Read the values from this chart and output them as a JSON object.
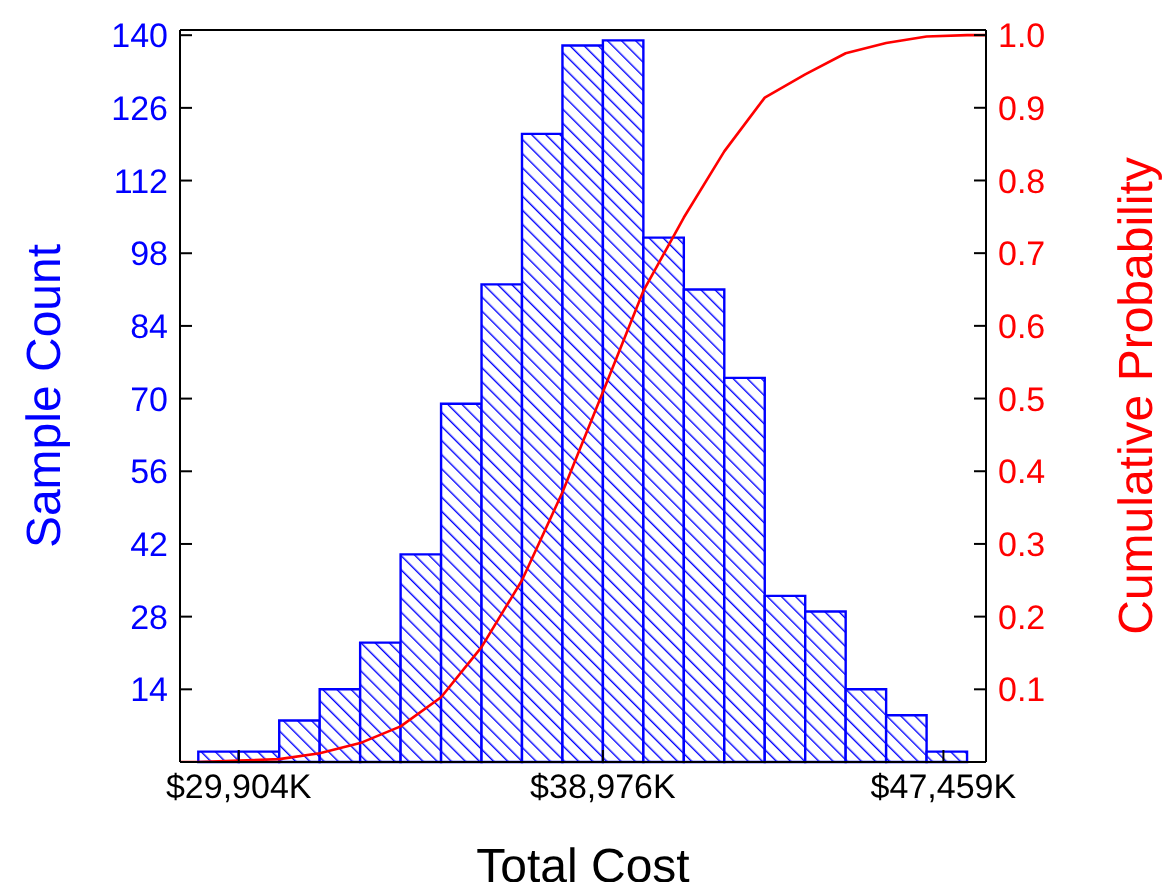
{
  "chart_data": {
    "type": "histogram",
    "xlabel": "Total Cost",
    "ylabel": "Sample Count",
    "y2label": "Cumulative Probability",
    "bins": [
      28896,
      29904,
      30912,
      31920,
      32928,
      33936,
      34944,
      35952,
      36960,
      37968,
      38976,
      39984,
      40992,
      42000,
      43008,
      44016,
      45024,
      46032,
      47040,
      48048
    ],
    "values": [
      2,
      2,
      8,
      14,
      23,
      40,
      69,
      92,
      121,
      138,
      139,
      101,
      91,
      74,
      32,
      29,
      14,
      9,
      2
    ],
    "color": "#0000ff",
    "series": [
      {
        "type": "line",
        "axis": "y2",
        "color": "#ff0000",
        "x": [
          28440,
          28896,
          29904,
          30912,
          31920,
          32928,
          33936,
          34944,
          35952,
          36960,
          37968,
          38976,
          39984,
          40992,
          42000,
          43008,
          44016,
          45024,
          46032,
          47040,
          48048,
          48520
        ],
        "values": [
          0,
          0,
          0.002,
          0.004,
          0.012,
          0.026,
          0.049,
          0.089,
          0.158,
          0.25,
          0.371,
          0.509,
          0.648,
          0.749,
          0.84,
          0.914,
          0.946,
          0.975,
          0.989,
          0.998,
          1.0,
          1.0
        ]
      }
    ],
    "xlim": [
      28440,
      48520
    ],
    "xticks": [
      {
        "value": 29904,
        "label": "$29,904K"
      },
      {
        "value": 38976,
        "label": "$38,976K"
      },
      {
        "value": 47459,
        "label": "$47,459K"
      }
    ],
    "ylim": [
      0,
      141
    ],
    "yticks": [
      14,
      28,
      42,
      56,
      70,
      84,
      98,
      112,
      126,
      140
    ],
    "y2lim": [
      0,
      1.007
    ],
    "y2ticks": [
      0.1,
      0.2,
      0.3,
      0.4,
      0.5,
      0.6,
      0.7,
      0.8,
      0.9,
      {
        "value": 1,
        "label": "1.0"
      }
    ],
    "legend": false
  }
}
